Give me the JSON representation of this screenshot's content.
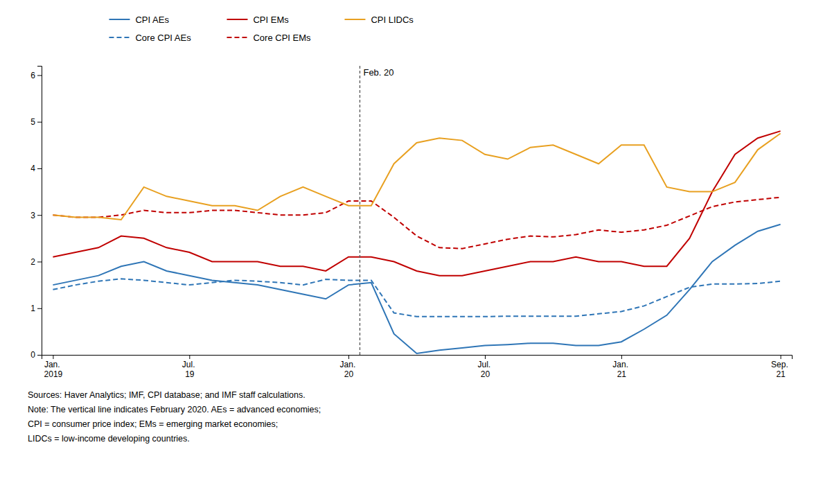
{
  "chart_data": {
    "type": "line",
    "categories": [
      "Jan. 2019",
      null,
      null,
      null,
      null,
      null,
      "Jul. 19",
      null,
      null,
      null,
      null,
      null,
      null,
      "Jan. 20",
      null,
      null,
      null,
      null,
      null,
      "Jul. 20",
      null,
      null,
      null,
      null,
      null,
      "Jan. 21",
      null,
      null,
      null,
      null,
      null,
      null,
      "Sep. 21"
    ],
    "series": [
      {
        "name": "CPI AEs",
        "color": "#2E75B6",
        "line_style": "solid",
        "values": [
          1.5,
          1.6,
          1.7,
          1.9,
          2.0,
          1.8,
          1.7,
          1.6,
          1.55,
          1.5,
          1.4,
          1.3,
          1.2,
          1.5,
          1.55,
          0.45,
          0.03,
          0.1,
          0.15,
          0.2,
          0.22,
          0.25,
          0.25,
          0.2,
          0.2,
          0.28,
          0.55,
          0.85,
          1.4,
          2.0,
          2.35,
          2.65,
          2.8
        ]
      },
      {
        "name": "Core CPI AEs",
        "color": "#2E75B6",
        "line_style": "dashed",
        "values": [
          1.4,
          1.5,
          1.58,
          1.63,
          1.6,
          1.55,
          1.5,
          1.55,
          1.6,
          1.58,
          1.55,
          1.5,
          1.62,
          1.6,
          1.6,
          0.9,
          0.82,
          0.82,
          0.82,
          0.82,
          0.83,
          0.83,
          0.83,
          0.83,
          0.88,
          0.93,
          1.05,
          1.25,
          1.45,
          1.52,
          1.52,
          1.53,
          1.58
        ]
      },
      {
        "name": "CPI EMs",
        "color": "#C00000",
        "line_style": "solid",
        "values": [
          2.1,
          2.2,
          2.3,
          2.55,
          2.5,
          2.3,
          2.2,
          2.0,
          2.0,
          2.0,
          1.9,
          1.9,
          1.8,
          2.1,
          2.1,
          2.0,
          1.8,
          1.7,
          1.7,
          1.8,
          1.9,
          2.0,
          2.0,
          2.1,
          2.0,
          2.0,
          1.9,
          1.9,
          2.5,
          3.5,
          4.3,
          4.65,
          4.8
        ]
      },
      {
        "name": "Core CPI EMs",
        "color": "#C00000",
        "line_style": "dashed",
        "values": [
          3.0,
          2.95,
          2.95,
          3.0,
          3.1,
          3.05,
          3.05,
          3.1,
          3.1,
          3.05,
          3.0,
          3.0,
          3.05,
          3.3,
          3.3,
          2.95,
          2.55,
          2.3,
          2.28,
          2.38,
          2.48,
          2.55,
          2.53,
          2.58,
          2.68,
          2.63,
          2.68,
          2.78,
          2.98,
          3.18,
          3.28,
          3.33,
          3.38
        ]
      },
      {
        "name": "CPI LIDCs",
        "color": "#E8A020",
        "line_style": "solid",
        "values": [
          3.0,
          2.95,
          2.95,
          2.9,
          3.6,
          3.4,
          3.3,
          3.2,
          3.2,
          3.1,
          3.4,
          3.6,
          3.4,
          3.2,
          3.2,
          4.1,
          4.55,
          4.65,
          4.6,
          4.3,
          4.2,
          4.45,
          4.5,
          4.3,
          4.1,
          4.5,
          4.5,
          3.6,
          3.5,
          3.5,
          3.7,
          4.4,
          4.75
        ]
      }
    ],
    "ylim": [
      0,
      6.2
    ],
    "yticks": [
      0,
      1,
      2,
      3,
      4,
      5,
      6
    ],
    "grid": false,
    "legend": "top",
    "annotations": [
      {
        "text": "Feb. 20",
        "x": 13.5
      }
    ],
    "footnote": [
      "Sources: Haver Analytics; IMF, CPI database; and IMF staff calculations.",
      "Note: The vertical line indicates February 2020. AEs = advanced economies;",
      "CPI = consumer price index; EMs = emerging market economies;",
      "LIDCs = low-income developing countries."
    ]
  }
}
